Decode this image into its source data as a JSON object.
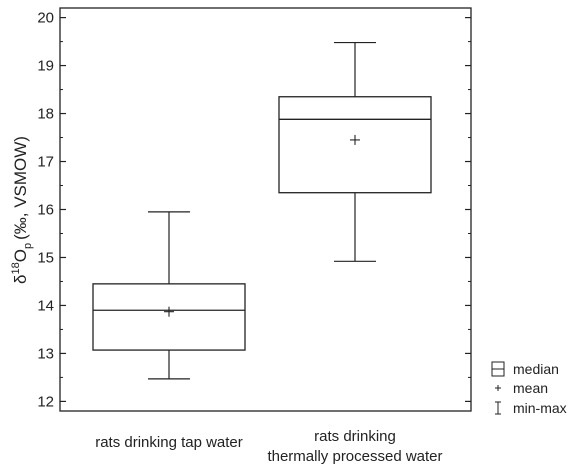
{
  "chart_data": {
    "type": "boxplot",
    "ylabel": {
      "base": "δ",
      "sup": "18",
      "main": "O",
      "sub": "p",
      "unit": "(‰, VSMOW)"
    },
    "ylim": [
      11.8,
      20.2
    ],
    "yticks": [
      "12",
      "13",
      "14",
      "15",
      "16",
      "17",
      "18",
      "19",
      "20"
    ],
    "categories": [
      {
        "label_lines": [
          "rats drinking tap water"
        ],
        "min": 12.47,
        "q1": 13.07,
        "median": 13.9,
        "q3": 14.45,
        "max": 15.95,
        "mean": 13.87
      },
      {
        "label_lines": [
          "rats drinking",
          "thermally processed water"
        ],
        "min": 14.92,
        "q1": 16.35,
        "median": 17.88,
        "q3": 18.35,
        "max": 19.48,
        "mean": 17.45
      }
    ],
    "legend": [
      {
        "symbol": "median-box",
        "label": "median"
      },
      {
        "symbol": "plus",
        "label": "mean"
      },
      {
        "symbol": "whisker",
        "label": "min-max"
      }
    ],
    "grid": false,
    "legend_position": "bottom-right"
  }
}
